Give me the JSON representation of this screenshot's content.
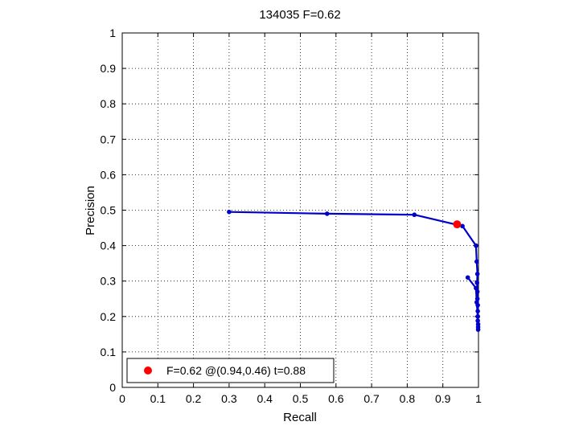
{
  "chart_data": {
    "type": "line",
    "title": "134035 F=0.62",
    "xlabel": "Recall",
    "ylabel": "Precision",
    "xlim": [
      0,
      1
    ],
    "ylim": [
      0,
      1
    ],
    "xticks": [
      "0",
      "0.1",
      "0.2",
      "0.3",
      "0.4",
      "0.5",
      "0.6",
      "0.7",
      "0.8",
      "0.9",
      "1"
    ],
    "yticks": [
      "0",
      "0.1",
      "0.2",
      "0.3",
      "0.4",
      "0.5",
      "0.6",
      "0.7",
      "0.8",
      "0.9",
      "1"
    ],
    "grid": true,
    "legend_position": "bottom-left",
    "colors": {
      "series": "#0000cc",
      "best_point": "#ff0000"
    },
    "series": [
      {
        "values": [
          [
            0.3,
            0.495
          ],
          [
            0.575,
            0.49
          ],
          [
            0.82,
            0.487
          ],
          [
            0.955,
            0.455
          ],
          [
            0.993,
            0.4
          ],
          [
            0.995,
            0.355
          ],
          [
            0.997,
            0.32
          ],
          [
            0.996,
            0.295
          ],
          [
            0.997,
            0.27
          ],
          [
            0.997,
            0.25
          ],
          [
            0.998,
            0.232
          ],
          [
            0.998,
            0.215
          ],
          [
            0.998,
            0.2
          ],
          [
            0.998,
            0.188
          ],
          [
            0.999,
            0.178
          ],
          [
            0.999,
            0.17
          ],
          [
            0.999,
            0.163
          ],
          [
            0.998,
            0.2
          ],
          [
            0.995,
            0.24
          ],
          [
            0.993,
            0.28
          ],
          [
            0.97,
            0.31
          ]
        ]
      }
    ],
    "best_point": {
      "x": 0.94,
      "y": 0.46
    },
    "legend_entries": [
      "F=0.62 @(0.94,0.46) t=0.88"
    ]
  }
}
